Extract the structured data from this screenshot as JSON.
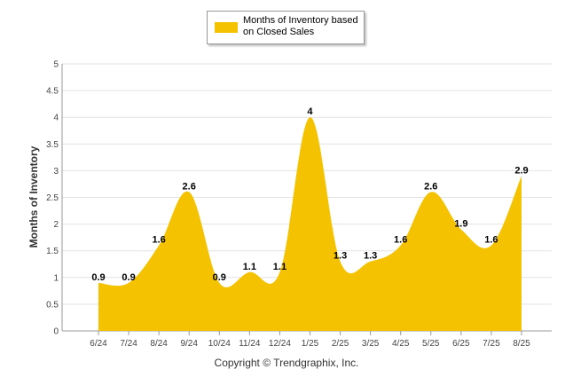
{
  "legend": {
    "label": "Months of Inventory based on Closed Sales"
  },
  "footer": {
    "copyright": "Copyright © Trendgraphix, Inc."
  },
  "colors": {
    "fill": "#f5c200",
    "grid": "#e2e2e2",
    "axis": "#999999"
  },
  "chart_data": {
    "type": "area",
    "categories": [
      "6/24",
      "7/24",
      "8/24",
      "9/24",
      "10/24",
      "11/24",
      "12/24",
      "1/25",
      "2/25",
      "3/25",
      "4/25",
      "5/25",
      "6/25",
      "7/25",
      "8/25"
    ],
    "series": [
      {
        "name": "Months of Inventory based on Closed Sales",
        "values": [
          0.9,
          0.9,
          1.6,
          2.6,
          0.9,
          1.1,
          1.1,
          4,
          1.3,
          1.3,
          1.6,
          2.6,
          1.9,
          1.6,
          2.9
        ]
      }
    ],
    "data_labels": [
      "0.9",
      "0.9",
      "1.6",
      "2.6",
      "0.9",
      "1.1",
      "1.1",
      "4",
      "1.3",
      "1.3",
      "1.6",
      "2.6",
      "1.9",
      "1.6",
      "2.9"
    ],
    "ylabel": "Months of Inventory",
    "xlabel": "",
    "ylim": [
      0,
      5
    ],
    "yticks": [
      "0",
      "0.5",
      "1",
      "1.5",
      "2",
      "2.5",
      "3",
      "3.5",
      "4",
      "4.5",
      "5"
    ],
    "grid": true,
    "legend_position": "top-center"
  }
}
